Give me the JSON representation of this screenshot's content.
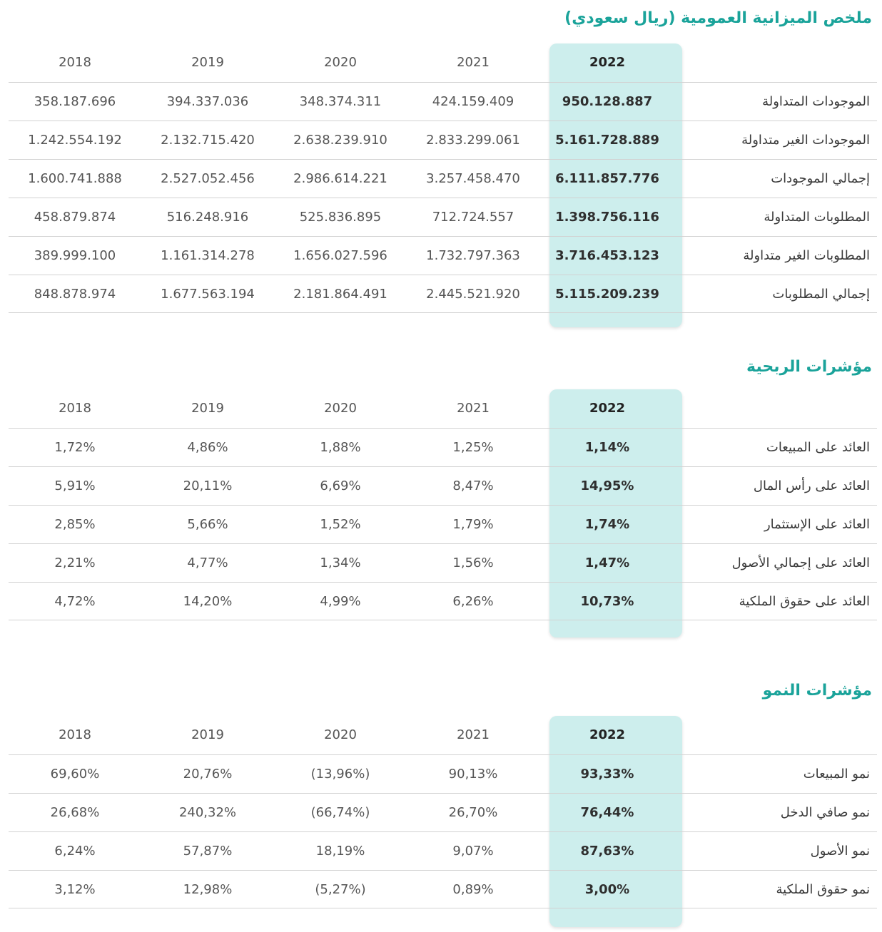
{
  "sections": [
    {
      "title": "ملخص الميزانية العمومية (ريال سعودي)",
      "years": [
        "2018",
        "2019",
        "2020",
        "2021",
        "2022"
      ],
      "rows": [
        {
          "label": "الموجودات المتداولة",
          "values": [
            "358.187.696",
            "394.337.036",
            "348.374.311",
            "424.159.409",
            "950.128.887"
          ]
        },
        {
          "label": "الموجودات الغير متداولة",
          "values": [
            "1.242.554.192",
            "2.132.715.420",
            "2.638.239.910",
            "2.833.299.061",
            "5.161.728.889"
          ]
        },
        {
          "label": "إجمالي الموجودات",
          "values": [
            "1.600.741.888",
            "2.527.052.456",
            "2.986.614.221",
            "3.257.458.470",
            "6.111.857.776"
          ]
        },
        {
          "label": "المطلوبات المتداولة",
          "values": [
            "458.879.874",
            "516.248.916",
            "525.836.895",
            "712.724.557",
            "1.398.756.116"
          ]
        },
        {
          "label": "المطلوبات الغير متداولة",
          "values": [
            "389.999.100",
            "1.161.314.278",
            "1.656.027.596",
            "1.732.797.363",
            "3.716.453.123"
          ]
        },
        {
          "label": "إجمالي المطلوبات",
          "values": [
            "848.878.974",
            "1.677.563.194",
            "2.181.864.491",
            "2.445.521.920",
            "5.115.209.239"
          ]
        }
      ]
    },
    {
      "title": "مؤشرات الربحية",
      "years": [
        "2018",
        "2019",
        "2020",
        "2021",
        "2022"
      ],
      "rows": [
        {
          "label": "العائد على المبيعات",
          "values": [
            "1,72%",
            "4,86%",
            "1,88%",
            "1,25%",
            "1,14%"
          ]
        },
        {
          "label": "العائد على رأس المال",
          "values": [
            "5,91%",
            "20,11%",
            "6,69%",
            "8,47%",
            "14,95%"
          ]
        },
        {
          "label": "العائد على الإستثمار",
          "values": [
            "2,85%",
            "5,66%",
            "1,52%",
            "1,79%",
            "1,74%"
          ]
        },
        {
          "label": "العائد على إجمالي الأصول",
          "values": [
            "2,21%",
            "4,77%",
            "1,34%",
            "1,56%",
            "1,47%"
          ]
        },
        {
          "label": "العائد على حقوق الملكية",
          "values": [
            "4,72%",
            "14,20%",
            "4,99%",
            "6,26%",
            "10,73%"
          ]
        }
      ]
    },
    {
      "title": "مؤشرات النمو",
      "years": [
        "2018",
        "2019",
        "2020",
        "2021",
        "2022"
      ],
      "rows": [
        {
          "label": "نمو المبيعات",
          "values": [
            "69,60%",
            "20,76%",
            "(13,96%)",
            "90,13%",
            "93,33%"
          ]
        },
        {
          "label": "نمو صافي الدخل",
          "values": [
            "26,68%",
            "240,32%",
            "(66,74%)",
            "26,70%",
            "76,44%"
          ]
        },
        {
          "label": "نمو الأصول",
          "values": [
            "6,24%",
            "57,87%",
            "18,19%",
            "9,07%",
            "87,63%"
          ]
        },
        {
          "label": "نمو حقوق الملكية",
          "values": [
            "3,12%",
            "12,98%",
            "(5,27%)",
            "0,89%",
            "3,00%"
          ]
        }
      ]
    }
  ]
}
